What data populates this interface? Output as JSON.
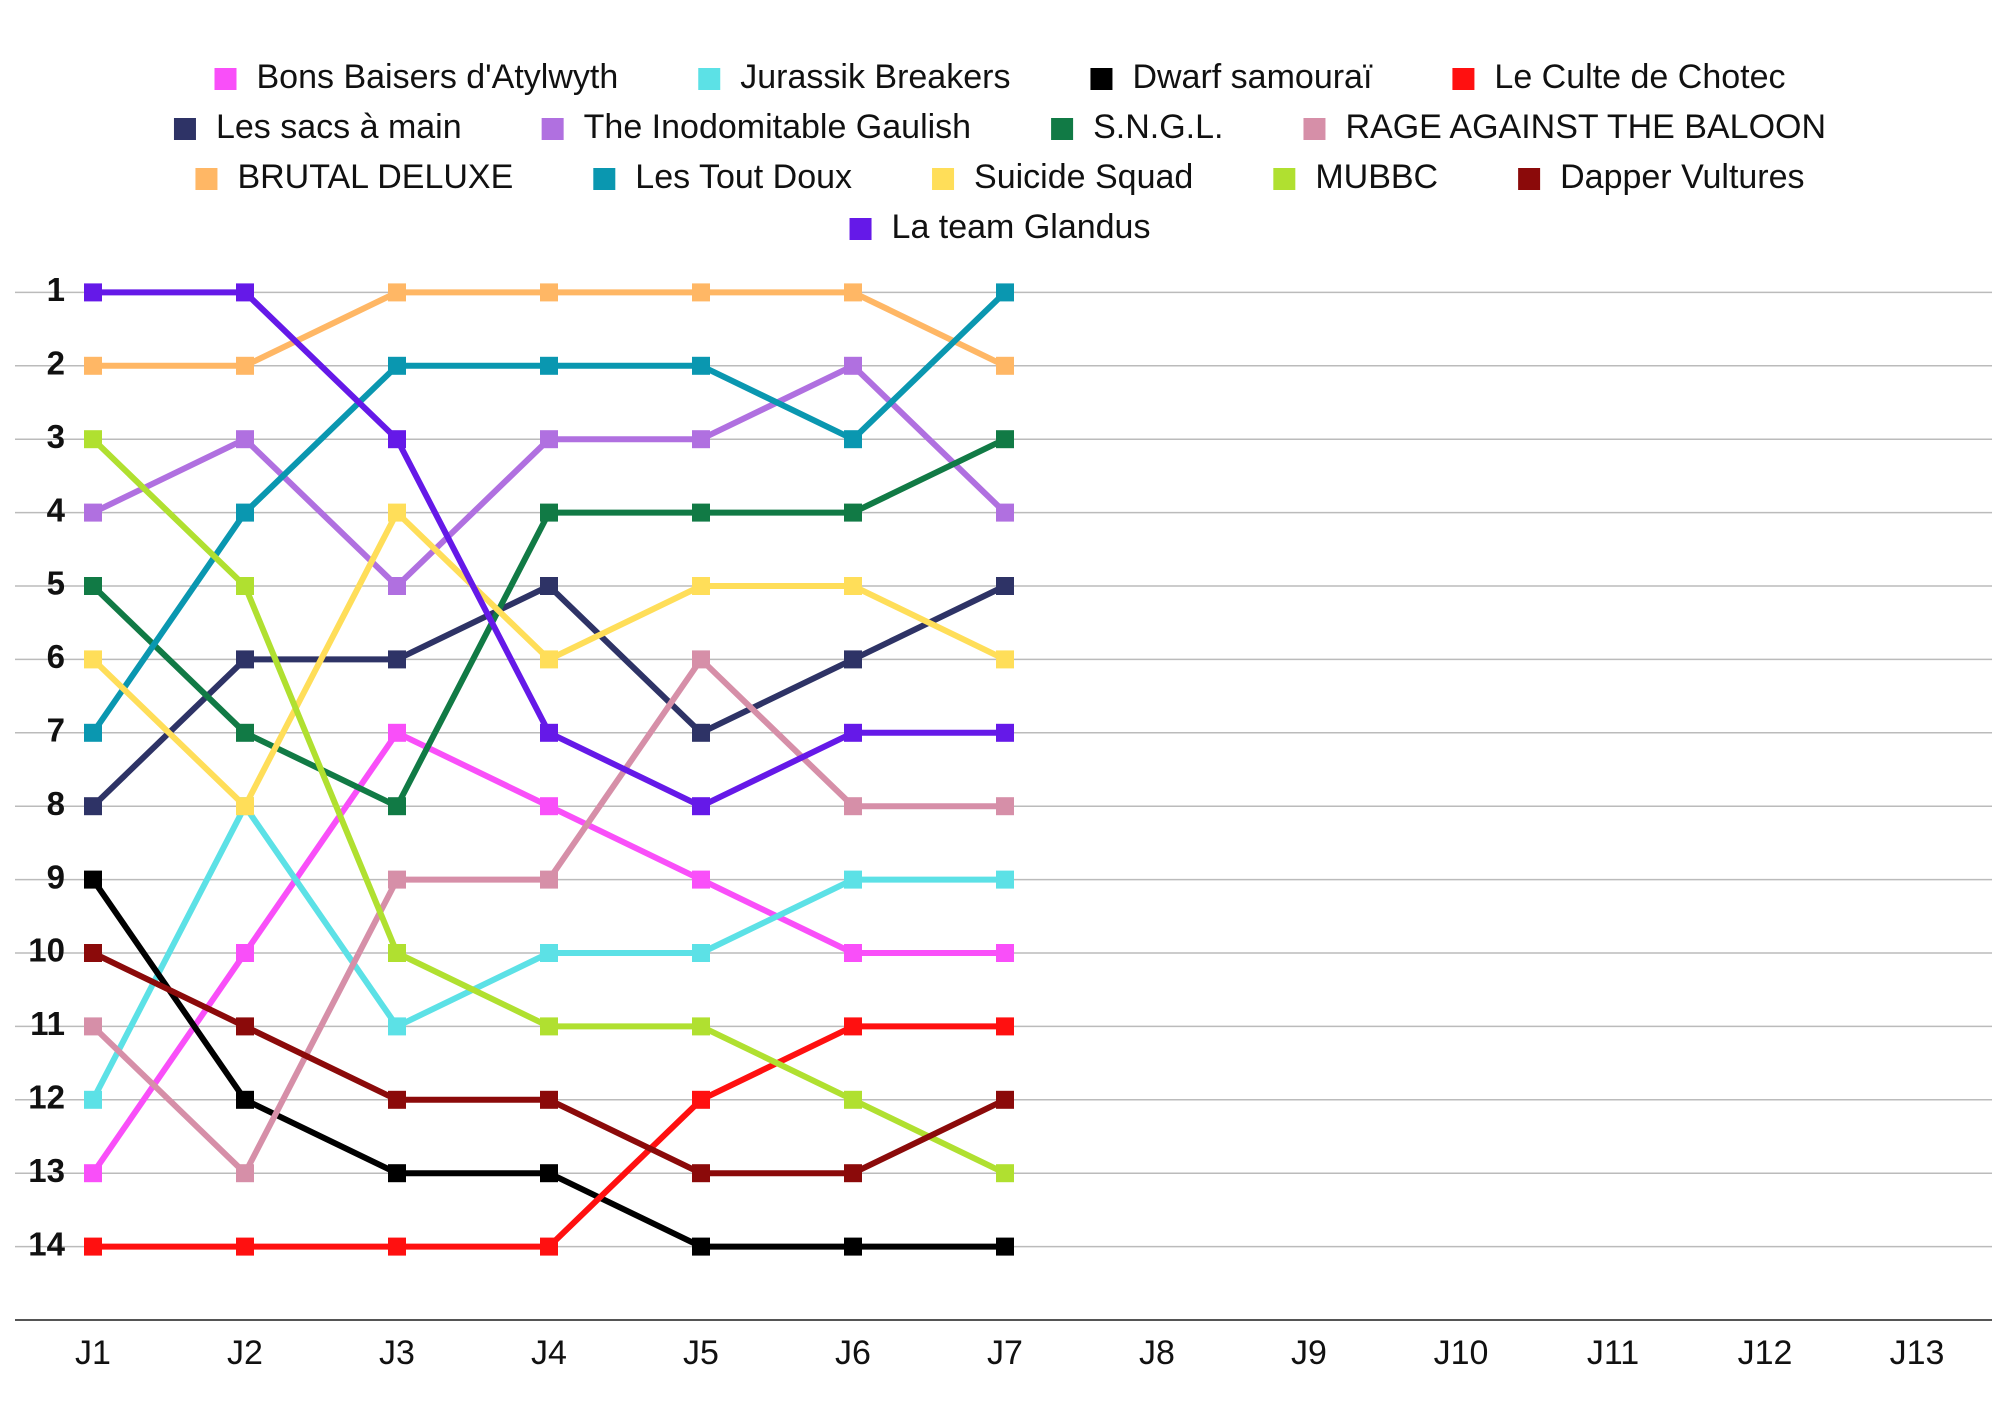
{
  "chart_data": {
    "type": "line",
    "categories": [
      "J1",
      "J2",
      "J3",
      "J4",
      "J5",
      "J6",
      "J7",
      "J8",
      "J9",
      "J10",
      "J11",
      "J12",
      "J13"
    ],
    "ylim": [
      15,
      0
    ],
    "yticks": [
      1,
      2,
      3,
      4,
      5,
      6,
      7,
      8,
      9,
      10,
      11,
      12,
      13,
      14
    ],
    "grid": true,
    "legend": "top",
    "series": [
      {
        "name": "Bons Baisers d'Atylwyth",
        "color": "#f94ff9",
        "values": [
          13,
          10,
          7,
          8,
          9,
          10,
          10,
          null,
          null,
          null,
          null,
          null,
          null
        ]
      },
      {
        "name": "Jurassik Breakers",
        "color": "#5ce1e6",
        "values": [
          12,
          8,
          11,
          10,
          10,
          9,
          9,
          null,
          null,
          null,
          null,
          null,
          null
        ]
      },
      {
        "name": "Dwarf samouraï",
        "color": "#000000",
        "values": [
          9,
          12,
          13,
          13,
          14,
          14,
          14,
          null,
          null,
          null,
          null,
          null,
          null
        ]
      },
      {
        "name": "Le Culte de Chotec",
        "color": "#ff1010",
        "values": [
          14,
          14,
          14,
          14,
          12,
          11,
          11,
          null,
          null,
          null,
          null,
          null,
          null
        ]
      },
      {
        "name": "Les sacs à main",
        "color": "#2e3366",
        "values": [
          8,
          6,
          6,
          5,
          7,
          6,
          5,
          null,
          null,
          null,
          null,
          null,
          null
        ]
      },
      {
        "name": "The Inodomitable Gaulish",
        "color": "#b070e0",
        "values": [
          4,
          3,
          5,
          3,
          3,
          2,
          4,
          null,
          null,
          null,
          null,
          null,
          null
        ]
      },
      {
        "name": "S.N.G.L.",
        "color": "#117a45",
        "values": [
          5,
          7,
          8,
          4,
          4,
          4,
          3,
          null,
          null,
          null,
          null,
          null,
          null
        ]
      },
      {
        "name": "RAGE AGAINST THE BALOON",
        "color": "#d68fa8",
        "values": [
          11,
          13,
          9,
          9,
          6,
          8,
          8,
          null,
          null,
          null,
          null,
          null,
          null
        ]
      },
      {
        "name": "BRUTAL DELUXE",
        "color": "#ffb765",
        "values": [
          2,
          2,
          1,
          1,
          1,
          1,
          2,
          null,
          null,
          null,
          null,
          null,
          null
        ]
      },
      {
        "name": "Les Tout Doux",
        "color": "#0a97b0",
        "values": [
          7,
          4,
          2,
          2,
          2,
          3,
          1,
          null,
          null,
          null,
          null,
          null,
          null
        ]
      },
      {
        "name": "Suicide Squad",
        "color": "#ffde59",
        "values": [
          6,
          8,
          4,
          6,
          5,
          5,
          6,
          null,
          null,
          null,
          null,
          null,
          null
        ]
      },
      {
        "name": "MUBBC",
        "color": "#b0e030",
        "values": [
          3,
          5,
          10,
          11,
          11,
          12,
          13,
          null,
          null,
          null,
          null,
          null,
          null
        ]
      },
      {
        "name": "Dapper Vultures",
        "color": "#8b0a0a",
        "values": [
          10,
          11,
          12,
          12,
          13,
          13,
          12,
          null,
          null,
          null,
          null,
          null,
          null
        ]
      },
      {
        "name": "La team Glandus",
        "color": "#6519e8",
        "values": [
          1,
          1,
          3,
          7,
          8,
          7,
          7,
          null,
          null,
          null,
          null,
          null,
          null
        ]
      }
    ]
  }
}
